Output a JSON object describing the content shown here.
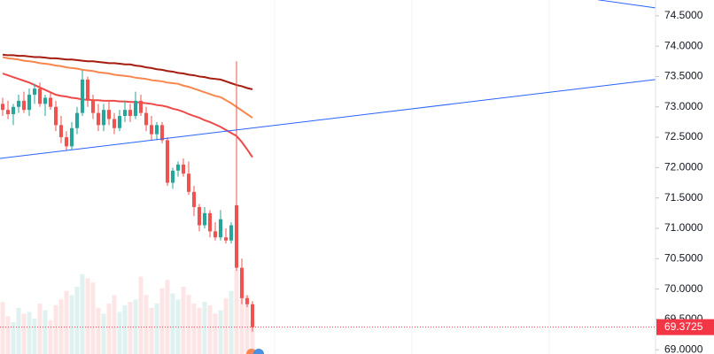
{
  "chart_data": {
    "type": "candlestick",
    "open": [
      73.05,
      72.95,
      72.88,
      73.0,
      73.1,
      72.95,
      73.2,
      73.3,
      73.05,
      73.15,
      73.0,
      72.7,
      72.5,
      72.35,
      72.65,
      72.9,
      73.45,
      73.1,
      72.9,
      72.7,
      72.95,
      72.8,
      72.65,
      72.85,
      72.95,
      72.85,
      73.1,
      72.9,
      72.7,
      72.55,
      72.7,
      72.45,
      71.75,
      71.95,
      72.05,
      71.9,
      71.6,
      71.35,
      71.05,
      71.25,
      70.95,
      70.85,
      70.85,
      70.8,
      71.38,
      70.35,
      69.85,
      69.75
    ],
    "high": [
      73.15,
      73.1,
      73.05,
      73.2,
      73.25,
      73.3,
      73.38,
      73.4,
      73.2,
      73.25,
      73.1,
      72.85,
      72.6,
      72.75,
      73.0,
      73.6,
      73.5,
      73.2,
      73.05,
      73.05,
      73.1,
      72.9,
      72.95,
      73.1,
      73.05,
      73.25,
      73.2,
      73.0,
      72.85,
      72.75,
      72.75,
      72.5,
      72.0,
      72.1,
      72.15,
      72.1,
      71.7,
      71.4,
      71.35,
      71.3,
      71.1,
      71.3,
      71.0,
      71.1,
      73.75,
      70.5,
      69.9,
      69.8
    ],
    "low": [
      72.85,
      72.8,
      72.7,
      72.9,
      72.9,
      72.85,
      73.05,
      73.0,
      72.85,
      72.95,
      72.6,
      72.4,
      72.28,
      72.3,
      72.55,
      72.85,
      73.0,
      72.8,
      72.6,
      72.6,
      72.7,
      72.55,
      72.6,
      72.75,
      72.75,
      72.8,
      72.85,
      72.6,
      72.45,
      72.45,
      72.4,
      71.7,
      71.65,
      71.85,
      71.85,
      71.55,
      71.2,
      70.95,
      71.0,
      70.85,
      70.8,
      70.8,
      70.75,
      70.75,
      70.3,
      69.75,
      69.7,
      69.3
    ],
    "close": [
      72.95,
      72.88,
      73.0,
      73.1,
      72.95,
      73.2,
      73.3,
      73.05,
      73.15,
      73.0,
      72.7,
      72.5,
      72.35,
      72.65,
      72.9,
      73.45,
      73.1,
      72.9,
      72.7,
      72.95,
      72.8,
      72.65,
      72.85,
      72.95,
      72.85,
      73.1,
      72.9,
      72.7,
      72.55,
      72.7,
      72.45,
      71.75,
      71.95,
      72.05,
      71.9,
      71.6,
      71.35,
      71.05,
      71.25,
      70.95,
      70.85,
      71.15,
      70.8,
      71.05,
      70.35,
      69.85,
      69.75,
      69.3725
    ],
    "volume": [
      62,
      45,
      38,
      55,
      48,
      50,
      42,
      60,
      52,
      40,
      58,
      65,
      75,
      70,
      80,
      95,
      90,
      85,
      55,
      48,
      60,
      70,
      50,
      58,
      62,
      65,
      92,
      70,
      55,
      60,
      78,
      88,
      72,
      65,
      80,
      70,
      60,
      55,
      62,
      58,
      48,
      52,
      66,
      75,
      100,
      90,
      70,
      40
    ],
    "up_color": "#26a69a",
    "down_color": "#ef5350",
    "series": [
      {
        "color": "#a51c0e",
        "values": [
          73.86,
          73.85,
          73.85,
          73.84,
          73.84,
          73.83,
          73.82,
          73.82,
          73.81,
          73.8,
          73.8,
          73.79,
          73.78,
          73.78,
          73.77,
          73.76,
          73.75,
          73.75,
          73.74,
          73.73,
          73.72,
          73.72,
          73.71,
          73.7,
          73.7,
          73.68,
          73.67,
          73.65,
          73.64,
          73.62,
          73.61,
          73.59,
          73.58,
          73.56,
          73.55,
          73.53,
          73.52,
          73.5,
          73.49,
          73.47,
          73.46,
          73.45,
          73.42,
          73.39,
          73.36,
          73.34,
          73.31,
          73.29
        ]
      },
      {
        "color": "#f7874e",
        "values": [
          73.82,
          73.8,
          73.79,
          73.78,
          73.76,
          73.75,
          73.74,
          73.72,
          73.71,
          73.7,
          73.68,
          73.67,
          73.65,
          73.64,
          73.63,
          73.61,
          73.6,
          73.59,
          73.57,
          73.56,
          73.55,
          73.53,
          73.52,
          73.51,
          73.5,
          73.48,
          73.47,
          73.46,
          73.44,
          73.43,
          73.42,
          73.4,
          73.39,
          73.38,
          73.35,
          73.33,
          73.3,
          73.27,
          73.24,
          73.21,
          73.18,
          73.16,
          73.11,
          73.06,
          73.0,
          72.94,
          72.88,
          72.82
        ]
      },
      {
        "color": "#ef4a4a",
        "values": [
          73.55,
          73.52,
          73.49,
          73.46,
          73.43,
          73.4,
          73.36,
          73.32,
          73.28,
          73.24,
          73.2,
          73.18,
          73.17,
          73.15,
          73.14,
          73.12,
          73.12,
          73.11,
          73.11,
          73.1,
          73.1,
          73.1,
          73.09,
          73.09,
          73.08,
          73.08,
          73.07,
          73.06,
          73.05,
          73.03,
          73.02,
          73.0,
          72.97,
          72.95,
          72.92,
          72.88,
          72.85,
          72.82,
          72.78,
          72.75,
          72.71,
          72.67,
          72.62,
          72.57,
          72.52,
          72.42,
          72.3,
          72.17
        ]
      }
    ],
    "trendlines": [
      {
        "color": "#2962ff",
        "x": [
          -0.5,
          122.8
        ],
        "values": [
          72.151,
          73.45
        ]
      },
      {
        "color": "#2962ff",
        "x": [
          112,
          122.8
        ],
        "values": [
          74.763,
          74.63
        ]
      }
    ],
    "last_price": 69.3725,
    "last_price_color": "#f23645",
    "ylim": [
      68.93,
      74.76
    ],
    "yticks": [
      {
        "value": 69,
        "label": "69.0000"
      },
      {
        "value": 69.5,
        "label": "69.5000"
      },
      {
        "value": 70,
        "label": "70.0000"
      },
      {
        "value": 70.5,
        "label": "70.5000"
      },
      {
        "value": 71,
        "label": "71.0000"
      },
      {
        "value": 71.5,
        "label": "71.5000"
      },
      {
        "value": 72,
        "label": "72.0000"
      },
      {
        "value": 72.5,
        "label": "72.5000"
      },
      {
        "value": 73,
        "label": "73.0000"
      },
      {
        "value": 73.5,
        "label": "73.5000"
      },
      {
        "value": 74,
        "label": "74.0000"
      },
      {
        "value": 74.5,
        "label": "74.5000"
      }
    ]
  }
}
